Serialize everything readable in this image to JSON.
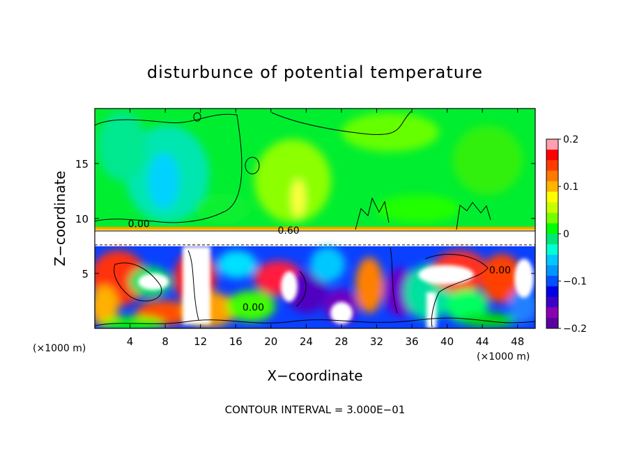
{
  "chart_data": {
    "type": "heatmap",
    "title": "disturbunce of potential temperature",
    "xlabel": "X−coordinate",
    "ylabel": "Z−coordinate",
    "x_unit": "(×1000 m)",
    "x_unit_right": "(×1000 m)",
    "xlim": [
      0,
      50
    ],
    "ylim": [
      0,
      20
    ],
    "x_ticks": [
      {
        "value": 4,
        "label": "4"
      },
      {
        "value": 8,
        "label": "8"
      },
      {
        "value": 12,
        "label": "12"
      },
      {
        "value": 16,
        "label": "16"
      },
      {
        "value": 20,
        "label": "20"
      },
      {
        "value": 24,
        "label": "24"
      },
      {
        "value": 28,
        "label": "28"
      },
      {
        "value": 32,
        "label": "32"
      },
      {
        "value": 36,
        "label": "36"
      },
      {
        "value": 40,
        "label": "40"
      },
      {
        "value": 44,
        "label": "44"
      },
      {
        "value": 48,
        "label": "48"
      }
    ],
    "y_ticks": [
      {
        "value": 5,
        "label": "5"
      },
      {
        "value": 10,
        "label": "10"
      },
      {
        "value": 15,
        "label": "15"
      }
    ],
    "colorbar": {
      "range": [
        -0.2,
        0.2
      ],
      "ticks": [
        {
          "value": 0.2,
          "label": "0.2"
        },
        {
          "value": 0.1,
          "label": "0.1"
        },
        {
          "value": 0,
          "label": "0"
        },
        {
          "value": -0.1,
          "label": "−0.1"
        },
        {
          "value": -0.2,
          "label": "−0.2"
        }
      ],
      "colors": [
        "#ff9fb0",
        "#ff0000",
        "#ff3c00",
        "#ff7800",
        "#ffb400",
        "#ffff00",
        "#c8ff00",
        "#78ff00",
        "#00ff00",
        "#00e678",
        "#00ffd2",
        "#00c8ff",
        "#0096ff",
        "#0050ff",
        "#0000e6",
        "#3c00c8",
        "#8c00b4",
        "#5a00a0"
      ]
    },
    "contour_labels": [
      {
        "text": "0.00",
        "x": 5,
        "z": 9.2
      },
      {
        "text": "0.60",
        "x": 22,
        "z": 8.6
      },
      {
        "text": "0.00",
        "x": 18,
        "z": 1.6
      },
      {
        "text": "0.00",
        "x": 46,
        "z": 5
      }
    ],
    "footnote": "CONTOUR INTERVAL = 3.000E−01"
  }
}
